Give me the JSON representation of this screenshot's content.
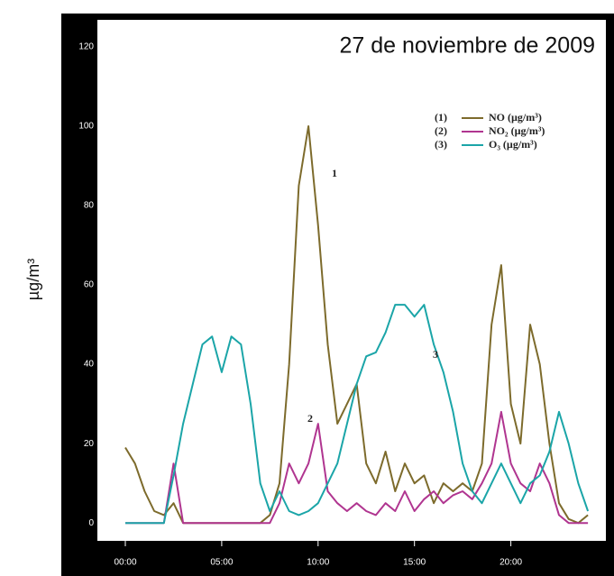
{
  "chart_data": {
    "type": "line",
    "title": "27 de noviembre de 2009",
    "y_label": "µg/m³",
    "x": [
      0,
      0.5,
      1,
      1.5,
      2,
      2.5,
      3,
      3.5,
      4,
      4.5,
      5,
      5.5,
      6,
      6.5,
      7,
      7.5,
      8,
      8.5,
      9,
      9.5,
      10,
      10.5,
      11,
      11.5,
      12,
      12.5,
      13,
      13.5,
      14,
      14.5,
      15,
      15.5,
      16,
      16.5,
      17,
      17.5,
      18,
      18.5,
      19,
      19.5,
      20,
      20.5,
      21,
      21.5,
      22,
      22.5,
      23,
      23.5,
      24
    ],
    "series": [
      {
        "name": "NO (µg/m³)",
        "legend_number": "(1)",
        "annotation": "1",
        "color": "#7d6b2c",
        "values": [
          19,
          15,
          8,
          3,
          2,
          5,
          0,
          0,
          0,
          0,
          0,
          0,
          0,
          0,
          0,
          2,
          10,
          40,
          85,
          100,
          75,
          45,
          25,
          30,
          35,
          15,
          10,
          18,
          8,
          15,
          10,
          12,
          5,
          10,
          8,
          10,
          8,
          15,
          50,
          65,
          30,
          20,
          50,
          40,
          20,
          5,
          1,
          0,
          2
        ]
      },
      {
        "name": "NO₂ (µg/m³)",
        "legend_number": "(2)",
        "annotation": "2",
        "color": "#b03590",
        "values": [
          0,
          0,
          0,
          0,
          0,
          15,
          0,
          0,
          0,
          0,
          0,
          0,
          0,
          0,
          0,
          0,
          5,
          15,
          10,
          15,
          25,
          8,
          5,
          3,
          5,
          3,
          2,
          5,
          3,
          8,
          3,
          6,
          8,
          5,
          7,
          8,
          6,
          10,
          15,
          28,
          15,
          10,
          8,
          15,
          10,
          2,
          0,
          0,
          0
        ]
      },
      {
        "name": "O₃ (µg/m³)",
        "legend_number": "(3)",
        "annotation": "3",
        "color": "#1ba5a8",
        "values": [
          0,
          0,
          0,
          0,
          0,
          12,
          25,
          35,
          45,
          47,
          38,
          47,
          45,
          30,
          10,
          3,
          8,
          3,
          2,
          3,
          5,
          10,
          15,
          25,
          35,
          42,
          43,
          48,
          55,
          55,
          52,
          55,
          45,
          38,
          28,
          15,
          8,
          5,
          10,
          15,
          10,
          5,
          10,
          12,
          18,
          28,
          20,
          10,
          3
        ]
      }
    ],
    "xlim": [
      -1.45,
      24.93
    ],
    "ylim": [
      -4.5,
      126.8
    ],
    "xticks": [
      {
        "value": 0,
        "label": "00:00"
      },
      {
        "value": 5,
        "label": "05:00"
      },
      {
        "value": 10,
        "label": "10:00"
      },
      {
        "value": 15,
        "label": "15:00"
      },
      {
        "value": 20,
        "label": "20:00"
      }
    ],
    "yticks": [
      0,
      20,
      40,
      60,
      80,
      100,
      120
    ]
  }
}
